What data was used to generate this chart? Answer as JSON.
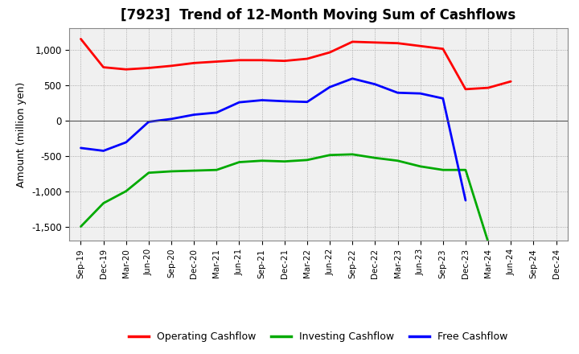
{
  "title": "[7923]  Trend of 12-Month Moving Sum of Cashflows",
  "ylabel": "Amount (million yen)",
  "x_labels": [
    "Sep-19",
    "Dec-19",
    "Mar-20",
    "Jun-20",
    "Sep-20",
    "Dec-20",
    "Mar-21",
    "Jun-21",
    "Sep-21",
    "Dec-21",
    "Mar-22",
    "Jun-22",
    "Sep-22",
    "Dec-22",
    "Mar-23",
    "Jun-23",
    "Sep-23",
    "Dec-23",
    "Mar-24",
    "Jun-24",
    "Sep-24",
    "Dec-24"
  ],
  "operating": [
    1150,
    750,
    720,
    740,
    770,
    810,
    830,
    850,
    850,
    840,
    870,
    960,
    1110,
    1100,
    1090,
    1050,
    1010,
    440,
    460,
    550,
    null,
    null
  ],
  "investing": [
    -1500,
    -1170,
    -1000,
    -740,
    -720,
    -710,
    -700,
    -590,
    -570,
    -580,
    -560,
    -490,
    -480,
    -530,
    -570,
    -650,
    -700,
    -700,
    -1720,
    null,
    null,
    null
  ],
  "free": [
    -390,
    -430,
    -310,
    -20,
    20,
    80,
    110,
    255,
    285,
    270,
    260,
    470,
    590,
    510,
    390,
    380,
    310,
    -1130,
    null,
    null,
    null,
    null
  ],
  "ylim": [
    -1700,
    1300
  ],
  "yticks": [
    -1500,
    -1000,
    -500,
    0,
    500,
    1000
  ],
  "colors": {
    "operating": "#ff0000",
    "investing": "#00aa00",
    "free": "#0000ff"
  },
  "background": "#ffffff",
  "plot_bg": "#f5f5f5",
  "grid_color": "#999999",
  "legend": [
    "Operating Cashflow",
    "Investing Cashflow",
    "Free Cashflow"
  ]
}
